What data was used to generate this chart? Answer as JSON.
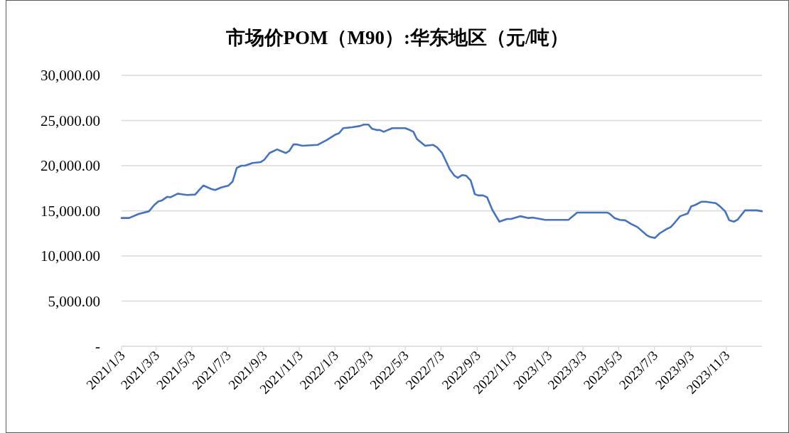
{
  "chart_data": {
    "type": "line",
    "title": "市场价POM（M90）:华东地区（元/吨）",
    "color": "#4472c4",
    "grid": "y",
    "x": [
      "2021-01-03",
      "2021-01-16",
      "2021-02-01",
      "2021-02-19",
      "2021-02-28",
      "2021-03-07",
      "2021-03-13",
      "2021-03-22",
      "2021-03-28",
      "2021-04-09",
      "2021-04-25",
      "2021-05-09",
      "2021-05-15",
      "2021-05-23",
      "2021-06-06",
      "2021-06-12",
      "2021-06-23",
      "2021-07-05",
      "2021-07-12",
      "2021-07-19",
      "2021-07-27",
      "2021-08-02",
      "2021-08-15",
      "2021-08-29",
      "2021-09-04",
      "2021-09-13",
      "2021-09-26",
      "2021-10-05",
      "2021-10-11",
      "2021-10-17",
      "2021-10-24",
      "2021-10-30",
      "2021-11-08",
      "2021-12-04",
      "2021-12-20",
      "2022-01-04",
      "2022-01-10",
      "2022-01-17",
      "2022-02-01",
      "2022-02-15",
      "2022-02-21",
      "2022-03-01",
      "2022-03-07",
      "2022-03-15",
      "2022-03-21",
      "2022-03-27",
      "2022-04-11",
      "2022-05-03",
      "2022-05-09",
      "2022-05-17",
      "2022-05-23",
      "2022-06-06",
      "2022-06-20",
      "2022-06-26",
      "2022-07-05",
      "2022-07-12",
      "2022-07-18",
      "2022-07-26",
      "2022-08-01",
      "2022-08-08",
      "2022-08-15",
      "2022-08-23",
      "2022-08-30",
      "2022-09-05",
      "2022-09-13",
      "2022-09-20",
      "2022-09-29",
      "2022-10-11",
      "2022-10-24",
      "2022-10-31",
      "2022-11-16",
      "2022-11-30",
      "2022-12-07",
      "2022-12-20",
      "2022-12-28",
      "2023-02-06",
      "2023-02-21",
      "2023-04-14",
      "2023-04-18",
      "2023-04-26",
      "2023-05-05",
      "2023-05-14",
      "2023-05-24",
      "2023-06-04",
      "2023-06-20",
      "2023-06-26",
      "2023-07-04",
      "2023-07-12",
      "2023-07-23",
      "2023-07-31",
      "2023-08-07",
      "2023-08-16",
      "2023-08-29",
      "2023-09-04",
      "2023-09-11",
      "2023-09-21",
      "2023-09-29",
      "2023-10-16",
      "2023-10-23",
      "2023-11-01",
      "2023-11-08",
      "2023-11-16",
      "2023-11-22",
      "2023-12-05",
      "2023-12-25",
      "2024-01-03"
    ],
    "values": [
      14200,
      14200,
      14650,
      14950,
      15650,
      16050,
      16150,
      16550,
      16500,
      16900,
      16750,
      16800,
      17250,
      17800,
      17400,
      17300,
      17600,
      17800,
      18250,
      19750,
      20000,
      20000,
      20300,
      20400,
      20650,
      21400,
      21800,
      21550,
      21400,
      21650,
      22350,
      22350,
      22200,
      22300,
      22850,
      23450,
      23600,
      24150,
      24250,
      24400,
      24550,
      24550,
      24100,
      23950,
      23950,
      23750,
      24150,
      24150,
      24000,
      23750,
      22950,
      22200,
      22300,
      22050,
      21400,
      20450,
      19600,
      18900,
      18650,
      18950,
      18900,
      18350,
      16850,
      16700,
      16700,
      16500,
      15100,
      13800,
      14100,
      14100,
      14400,
      14200,
      14250,
      14100,
      14000,
      14000,
      14800,
      14800,
      14650,
      14200,
      14000,
      13950,
      13550,
      13200,
      12300,
      12100,
      12000,
      12500,
      12950,
      13200,
      13700,
      14400,
      14700,
      15500,
      15650,
      16000,
      16000,
      15850,
      15500,
      14950,
      13950,
      13800,
      14000,
      15050,
      15050,
      14950
    ],
    "xlim": [
      "2021-01-03",
      "2024-01-03"
    ],
    "xticks": [
      {
        "value": "2021-01-03",
        "label": "2021/1/3"
      },
      {
        "value": "2021-03-03",
        "label": "2021/3/3"
      },
      {
        "value": "2021-05-03",
        "label": "2021/5/3"
      },
      {
        "value": "2021-07-03",
        "label": "2021/7/3"
      },
      {
        "value": "2021-09-03",
        "label": "2021/9/3"
      },
      {
        "value": "2021-11-03",
        "label": "2021/11/3"
      },
      {
        "value": "2022-01-03",
        "label": "2022/1/3"
      },
      {
        "value": "2022-03-03",
        "label": "2022/3/3"
      },
      {
        "value": "2022-05-03",
        "label": "2022/5/3"
      },
      {
        "value": "2022-07-03",
        "label": "2022/7/3"
      },
      {
        "value": "2022-09-03",
        "label": "2022/9/3"
      },
      {
        "value": "2022-11-03",
        "label": "2022/11/3"
      },
      {
        "value": "2023-01-03",
        "label": "2023/1/3"
      },
      {
        "value": "2023-03-03",
        "label": "2023/3/3"
      },
      {
        "value": "2023-05-03",
        "label": "2023/5/3"
      },
      {
        "value": "2023-07-03",
        "label": "2023/7/3"
      },
      {
        "value": "2023-09-03",
        "label": "2023/9/3"
      },
      {
        "value": "2023-11-03",
        "label": "2023/11/3"
      }
    ],
    "ylim": [
      0,
      30000
    ],
    "yticks": [
      {
        "value": 0,
        "label": "-"
      },
      {
        "value": 5000,
        "label": "5,000.00"
      },
      {
        "value": 10000,
        "label": "10,000.00"
      },
      {
        "value": 15000,
        "label": "15,000.00"
      },
      {
        "value": 20000,
        "label": "20,000.00"
      },
      {
        "value": 25000,
        "label": "25,000.00"
      },
      {
        "value": 30000,
        "label": "30,000.00"
      }
    ]
  }
}
